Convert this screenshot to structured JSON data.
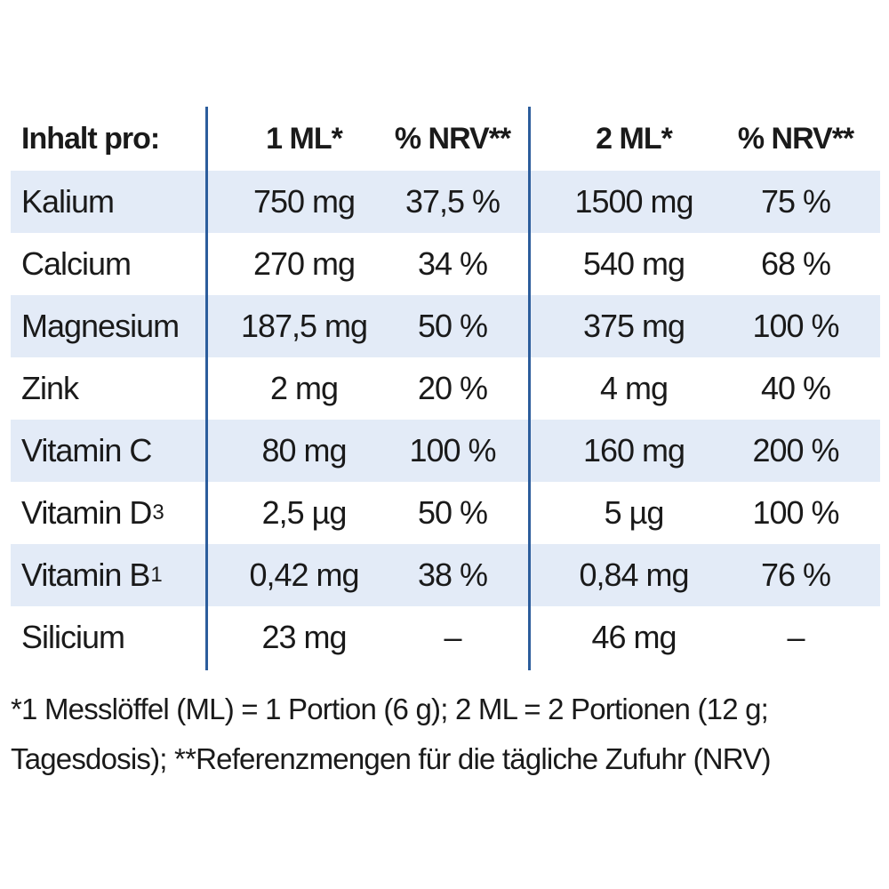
{
  "header": {
    "label": "Inhalt pro:",
    "col_1ml": "1 ML*",
    "col_nrv1": "% NRV**",
    "col_2ml": "2 ML*",
    "col_nrv2": "% NRV**"
  },
  "rows": [
    {
      "name": "Kalium",
      "sub": "",
      "ml1": "750 mg",
      "nrv1": "37,5 %",
      "ml2": "1500 mg",
      "nrv2": "75 %"
    },
    {
      "name": "Calcium",
      "sub": "",
      "ml1": "270 mg",
      "nrv1": "34 %",
      "ml2": "540 mg",
      "nrv2": "68 %"
    },
    {
      "name": "Magnesium",
      "sub": "",
      "ml1": "187,5 mg",
      "nrv1": "50 %",
      "ml2": "375 mg",
      "nrv2": "100 %"
    },
    {
      "name": "Zink",
      "sub": "",
      "ml1": "2 mg",
      "nrv1": "20 %",
      "ml2": "4 mg",
      "nrv2": "40 %"
    },
    {
      "name": "Vitamin C",
      "sub": "",
      "ml1": "80 mg",
      "nrv1": "100 %",
      "ml2": "160 mg",
      "nrv2": "200 %"
    },
    {
      "name": "Vitamin D",
      "sub": "3",
      "ml1": "2,5 µg",
      "nrv1": "50 %",
      "ml2": "5 µg",
      "nrv2": "100 %"
    },
    {
      "name": "Vitamin B",
      "sub": "1",
      "ml1": "0,42 mg",
      "nrv1": "38 %",
      "ml2": "0,84 mg",
      "nrv2": "76 %"
    },
    {
      "name": "Silicium",
      "sub": "",
      "ml1": "23 mg",
      "nrv1": "–",
      "ml2": "46 mg",
      "nrv2": "–"
    }
  ],
  "footnote": "*1 Messlöffel (ML) = 1 Portion (6 g); 2 ML = 2 Portionen (12 g; Tagesdosis); **Referenzmengen für die tägliche Zufuhr (NRV)",
  "colors": {
    "row_shade": "#e3ebf7",
    "divider": "#2c5d9c",
    "text": "#1a1a1a"
  }
}
